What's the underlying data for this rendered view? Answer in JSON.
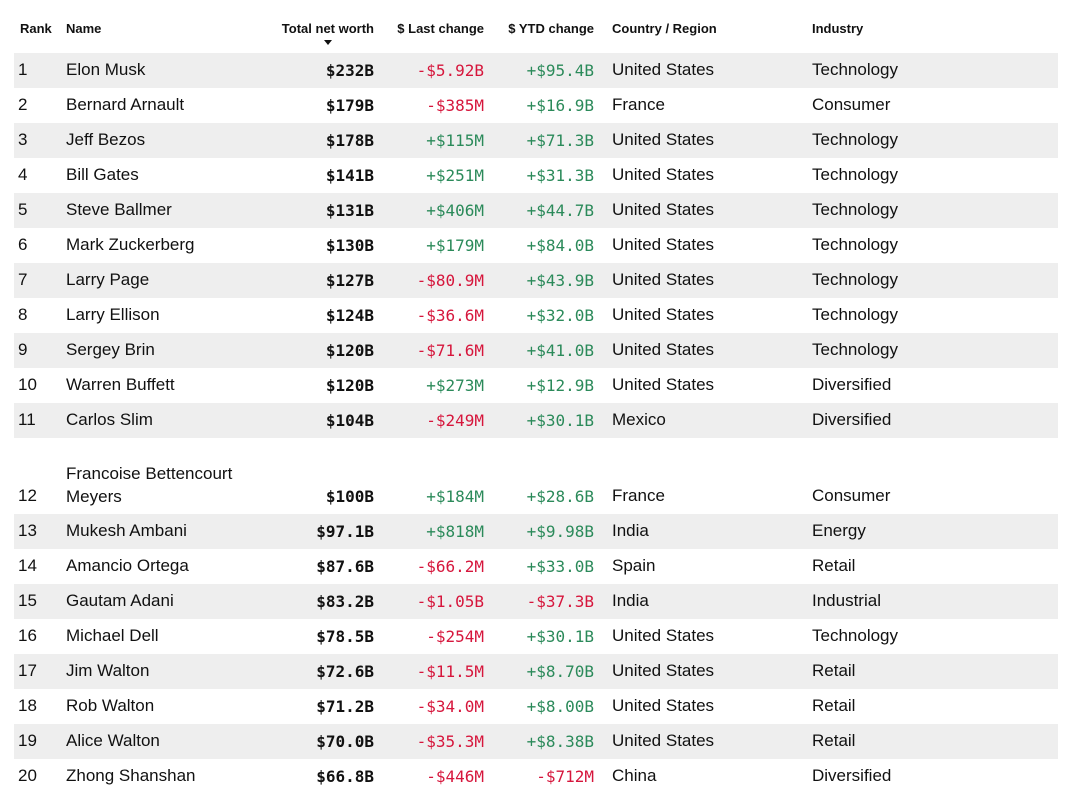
{
  "table": {
    "headers": {
      "rank": "Rank",
      "name": "Name",
      "worth": "Total net worth",
      "last": "$ Last change",
      "ytd": "$ YTD change",
      "country": "Country / Region",
      "industry": "Industry"
    },
    "sort_indicator": "chevron-down-icon",
    "colors": {
      "positive": "#2b8a5a",
      "negative": "#d6163c",
      "stripe": "#eeeeee"
    },
    "rows": [
      {
        "rank": "1",
        "name": "Elon Musk",
        "worth": "$232B",
        "last": "-$5.92B",
        "ytd": "+$95.4B",
        "country": "United States",
        "industry": "Technology"
      },
      {
        "rank": "2",
        "name": "Bernard Arnault",
        "worth": "$179B",
        "last": "-$385M",
        "ytd": "+$16.9B",
        "country": "France",
        "industry": "Consumer"
      },
      {
        "rank": "3",
        "name": "Jeff Bezos",
        "worth": "$178B",
        "last": "+$115M",
        "ytd": "+$71.3B",
        "country": "United States",
        "industry": "Technology"
      },
      {
        "rank": "4",
        "name": "Bill Gates",
        "worth": "$141B",
        "last": "+$251M",
        "ytd": "+$31.3B",
        "country": "United States",
        "industry": "Technology"
      },
      {
        "rank": "5",
        "name": "Steve Ballmer",
        "worth": "$131B",
        "last": "+$406M",
        "ytd": "+$44.7B",
        "country": "United States",
        "industry": "Technology"
      },
      {
        "rank": "6",
        "name": "Mark Zuckerberg",
        "worth": "$130B",
        "last": "+$179M",
        "ytd": "+$84.0B",
        "country": "United States",
        "industry": "Technology"
      },
      {
        "rank": "7",
        "name": "Larry Page",
        "worth": "$127B",
        "last": "-$80.9M",
        "ytd": "+$43.9B",
        "country": "United States",
        "industry": "Technology"
      },
      {
        "rank": "8",
        "name": "Larry Ellison",
        "worth": "$124B",
        "last": "-$36.6M",
        "ytd": "+$32.0B",
        "country": "United States",
        "industry": "Technology"
      },
      {
        "rank": "9",
        "name": "Sergey Brin",
        "worth": "$120B",
        "last": "-$71.6M",
        "ytd": "+$41.0B",
        "country": "United States",
        "industry": "Technology"
      },
      {
        "rank": "10",
        "name": "Warren Buffett",
        "worth": "$120B",
        "last": "+$273M",
        "ytd": "+$12.9B",
        "country": "United States",
        "industry": "Diversified"
      },
      {
        "rank": "11",
        "name": "Carlos Slim",
        "worth": "$104B",
        "last": "-$249M",
        "ytd": "+$30.1B",
        "country": "Mexico",
        "industry": "Diversified"
      },
      {
        "rank": "12",
        "name": "Francoise Bettencourt Meyers",
        "worth": "$100B",
        "last": "+$184M",
        "ytd": "+$28.6B",
        "country": "France",
        "industry": "Consumer"
      },
      {
        "rank": "13",
        "name": "Mukesh Ambani",
        "worth": "$97.1B",
        "last": "+$818M",
        "ytd": "+$9.98B",
        "country": "India",
        "industry": "Energy"
      },
      {
        "rank": "14",
        "name": "Amancio Ortega",
        "worth": "$87.6B",
        "last": "-$66.2M",
        "ytd": "+$33.0B",
        "country": "Spain",
        "industry": "Retail"
      },
      {
        "rank": "15",
        "name": "Gautam Adani",
        "worth": "$83.2B",
        "last": "-$1.05B",
        "ytd": "-$37.3B",
        "country": "India",
        "industry": "Industrial"
      },
      {
        "rank": "16",
        "name": "Michael Dell",
        "worth": "$78.5B",
        "last": "-$254M",
        "ytd": "+$30.1B",
        "country": "United States",
        "industry": "Technology"
      },
      {
        "rank": "17",
        "name": "Jim Walton",
        "worth": "$72.6B",
        "last": "-$11.5M",
        "ytd": "+$8.70B",
        "country": "United States",
        "industry": "Retail"
      },
      {
        "rank": "18",
        "name": "Rob Walton",
        "worth": "$71.2B",
        "last": "-$34.0M",
        "ytd": "+$8.00B",
        "country": "United States",
        "industry": "Retail"
      },
      {
        "rank": "19",
        "name": "Alice Walton",
        "worth": "$70.0B",
        "last": "-$35.3M",
        "ytd": "+$8.38B",
        "country": "United States",
        "industry": "Retail"
      },
      {
        "rank": "20",
        "name": "Zhong Shanshan",
        "worth": "$66.8B",
        "last": "-$446M",
        "ytd": "-$712M",
        "country": "China",
        "industry": "Diversified"
      }
    ]
  }
}
